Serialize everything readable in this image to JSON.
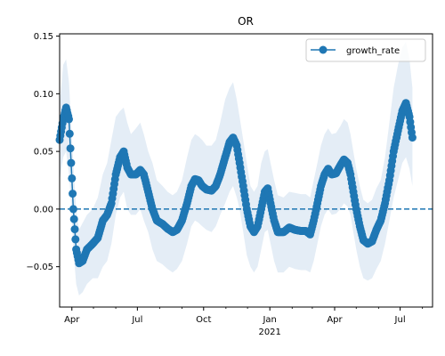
{
  "chart_data": {
    "type": "line",
    "title": "OR",
    "xlabel": "",
    "ylabel": "",
    "x_range": [
      "2020-03-15",
      "2021-08-15"
    ],
    "ylim": [
      -0.085,
      0.152
    ],
    "grid": false,
    "legend_position": "upper right",
    "x_ticks": [
      {
        "date": "2020-04-01",
        "label": "Apr"
      },
      {
        "date": "2020-07-01",
        "label": "Jul"
      },
      {
        "date": "2020-10-01",
        "label": "Oct"
      },
      {
        "date": "2021-01-01",
        "label": "Jan"
      },
      {
        "date": "2021-04-01",
        "label": "Apr"
      },
      {
        "date": "2021-07-01",
        "label": "Jul"
      }
    ],
    "x_secondary_label": {
      "date": "2021-01-01",
      "label": "2021"
    },
    "y_ticks": [
      {
        "value": -0.05,
        "label": "−0.05"
      },
      {
        "value": 0.0,
        "label": "0.00"
      },
      {
        "value": 0.05,
        "label": "0.05"
      },
      {
        "value": 0.1,
        "label": "0.10"
      },
      {
        "value": 0.15,
        "label": "0.15"
      }
    ],
    "reference_line": {
      "value": 0.0,
      "style": "dashed",
      "color": "#1f77b4"
    },
    "series": [
      {
        "name": "growth_rate",
        "color": "#1f77b4",
        "marker": "circle",
        "band_color": "#dbe7f3",
        "points": [
          {
            "x": "2020-03-15",
            "y": 0.06,
            "lo": 0.025,
            "hi": 0.09
          },
          {
            "x": "2020-03-20",
            "y": 0.078,
            "lo": 0.045,
            "hi": 0.125
          },
          {
            "x": "2020-03-24",
            "y": 0.088,
            "lo": 0.05,
            "hi": 0.13
          },
          {
            "x": "2020-03-28",
            "y": 0.078,
            "lo": 0.03,
            "hi": 0.11
          },
          {
            "x": "2020-03-31",
            "y": 0.04,
            "lo": 0.005,
            "hi": 0.075
          },
          {
            "x": "2020-04-03",
            "y": 0.0,
            "lo": -0.035,
            "hi": 0.04
          },
          {
            "x": "2020-04-07",
            "y": -0.035,
            "lo": -0.065,
            "hi": 0.0
          },
          {
            "x": "2020-04-11",
            "y": -0.047,
            "lo": -0.075,
            "hi": -0.018
          },
          {
            "x": "2020-04-16",
            "y": -0.045,
            "lo": -0.072,
            "hi": -0.012
          },
          {
            "x": "2020-04-22",
            "y": -0.035,
            "lo": -0.065,
            "hi": -0.005
          },
          {
            "x": "2020-04-30",
            "y": -0.03,
            "lo": -0.06,
            "hi": 0.0
          },
          {
            "x": "2020-05-07",
            "y": -0.025,
            "lo": -0.06,
            "hi": 0.01
          },
          {
            "x": "2020-05-14",
            "y": -0.01,
            "lo": -0.05,
            "hi": 0.03
          },
          {
            "x": "2020-05-20",
            "y": -0.005,
            "lo": -0.045,
            "hi": 0.04
          },
          {
            "x": "2020-05-26",
            "y": 0.005,
            "lo": -0.03,
            "hi": 0.06
          },
          {
            "x": "2020-06-01",
            "y": 0.03,
            "lo": -0.005,
            "hi": 0.08
          },
          {
            "x": "2020-06-07",
            "y": 0.045,
            "lo": 0.01,
            "hi": 0.085
          },
          {
            "x": "2020-06-12",
            "y": 0.05,
            "lo": 0.015,
            "hi": 0.088
          },
          {
            "x": "2020-06-17",
            "y": 0.036,
            "lo": 0.0,
            "hi": 0.075
          },
          {
            "x": "2020-06-22",
            "y": 0.03,
            "lo": -0.005,
            "hi": 0.065
          },
          {
            "x": "2020-06-29",
            "y": 0.03,
            "lo": -0.005,
            "hi": 0.07
          },
          {
            "x": "2020-07-05",
            "y": 0.034,
            "lo": 0.0,
            "hi": 0.075
          },
          {
            "x": "2020-07-10",
            "y": 0.03,
            "lo": -0.01,
            "hi": 0.065
          },
          {
            "x": "2020-07-16",
            "y": 0.015,
            "lo": -0.02,
            "hi": 0.05
          },
          {
            "x": "2020-07-22",
            "y": 0.0,
            "lo": -0.035,
            "hi": 0.04
          },
          {
            "x": "2020-07-28",
            "y": -0.01,
            "lo": -0.045,
            "hi": 0.025
          },
          {
            "x": "2020-08-05",
            "y": -0.013,
            "lo": -0.048,
            "hi": 0.02
          },
          {
            "x": "2020-08-12",
            "y": -0.017,
            "lo": -0.052,
            "hi": 0.015
          },
          {
            "x": "2020-08-19",
            "y": -0.02,
            "lo": -0.055,
            "hi": 0.012
          },
          {
            "x": "2020-08-25",
            "y": -0.018,
            "lo": -0.052,
            "hi": 0.015
          },
          {
            "x": "2020-09-01",
            "y": -0.01,
            "lo": -0.045,
            "hi": 0.025
          },
          {
            "x": "2020-09-08",
            "y": 0.005,
            "lo": -0.03,
            "hi": 0.045
          },
          {
            "x": "2020-09-14",
            "y": 0.02,
            "lo": -0.015,
            "hi": 0.06
          },
          {
            "x": "2020-09-19",
            "y": 0.026,
            "lo": -0.01,
            "hi": 0.065
          },
          {
            "x": "2020-09-24",
            "y": 0.025,
            "lo": -0.012,
            "hi": 0.063
          },
          {
            "x": "2020-09-29",
            "y": 0.02,
            "lo": -0.015,
            "hi": 0.06
          },
          {
            "x": "2020-10-05",
            "y": 0.017,
            "lo": -0.018,
            "hi": 0.055
          },
          {
            "x": "2020-10-12",
            "y": 0.016,
            "lo": -0.02,
            "hi": 0.055
          },
          {
            "x": "2020-10-18",
            "y": 0.02,
            "lo": -0.015,
            "hi": 0.06
          },
          {
            "x": "2020-10-24",
            "y": 0.03,
            "lo": -0.005,
            "hi": 0.075
          },
          {
            "x": "2020-10-31",
            "y": 0.045,
            "lo": 0.005,
            "hi": 0.095
          },
          {
            "x": "2020-11-06",
            "y": 0.058,
            "lo": 0.015,
            "hi": 0.105
          },
          {
            "x": "2020-11-11",
            "y": 0.062,
            "lo": 0.02,
            "hi": 0.11
          },
          {
            "x": "2020-11-16",
            "y": 0.055,
            "lo": 0.01,
            "hi": 0.095
          },
          {
            "x": "2020-11-20",
            "y": 0.04,
            "lo": 0.0,
            "hi": 0.08
          },
          {
            "x": "2020-11-25",
            "y": 0.02,
            "lo": -0.02,
            "hi": 0.06
          },
          {
            "x": "2020-11-30",
            "y": 0.0,
            "lo": -0.04,
            "hi": 0.04
          },
          {
            "x": "2020-12-05",
            "y": -0.015,
            "lo": -0.05,
            "hi": 0.02
          },
          {
            "x": "2020-12-10",
            "y": -0.02,
            "lo": -0.055,
            "hi": 0.015
          },
          {
            "x": "2020-12-15",
            "y": -0.015,
            "lo": -0.05,
            "hi": 0.02
          },
          {
            "x": "2020-12-20",
            "y": 0.0,
            "lo": -0.035,
            "hi": 0.04
          },
          {
            "x": "2020-12-25",
            "y": 0.015,
            "lo": -0.02,
            "hi": 0.05
          },
          {
            "x": "2020-12-29",
            "y": 0.018,
            "lo": -0.018,
            "hi": 0.052
          },
          {
            "x": "2021-01-02",
            "y": 0.005,
            "lo": -0.03,
            "hi": 0.04
          },
          {
            "x": "2021-01-07",
            "y": -0.01,
            "lo": -0.045,
            "hi": 0.025
          },
          {
            "x": "2021-01-12",
            "y": -0.02,
            "lo": -0.055,
            "hi": 0.012
          },
          {
            "x": "2021-01-20",
            "y": -0.02,
            "lo": -0.055,
            "hi": 0.01
          },
          {
            "x": "2021-01-28",
            "y": -0.016,
            "lo": -0.05,
            "hi": 0.015
          },
          {
            "x": "2021-02-05",
            "y": -0.018,
            "lo": -0.052,
            "hi": 0.014
          },
          {
            "x": "2021-02-13",
            "y": -0.019,
            "lo": -0.053,
            "hi": 0.013
          },
          {
            "x": "2021-02-20",
            "y": -0.019,
            "lo": -0.053,
            "hi": 0.013
          },
          {
            "x": "2021-02-26",
            "y": -0.022,
            "lo": -0.055,
            "hi": 0.01
          },
          {
            "x": "2021-03-03",
            "y": -0.01,
            "lo": -0.045,
            "hi": 0.025
          },
          {
            "x": "2021-03-08",
            "y": 0.005,
            "lo": -0.03,
            "hi": 0.04
          },
          {
            "x": "2021-03-13",
            "y": 0.02,
            "lo": -0.015,
            "hi": 0.055
          },
          {
            "x": "2021-03-18",
            "y": 0.03,
            "lo": -0.005,
            "hi": 0.065
          },
          {
            "x": "2021-03-23",
            "y": 0.035,
            "lo": 0.0,
            "hi": 0.07
          },
          {
            "x": "2021-03-28",
            "y": 0.03,
            "lo": -0.005,
            "hi": 0.065
          },
          {
            "x": "2021-04-03",
            "y": 0.031,
            "lo": -0.004,
            "hi": 0.066
          },
          {
            "x": "2021-04-09",
            "y": 0.038,
            "lo": 0.0,
            "hi": 0.072
          },
          {
            "x": "2021-04-14",
            "y": 0.043,
            "lo": 0.005,
            "hi": 0.078
          },
          {
            "x": "2021-04-19",
            "y": 0.04,
            "lo": 0.002,
            "hi": 0.075
          },
          {
            "x": "2021-04-23",
            "y": 0.03,
            "lo": -0.005,
            "hi": 0.065
          },
          {
            "x": "2021-04-27",
            "y": 0.015,
            "lo": -0.02,
            "hi": 0.05
          },
          {
            "x": "2021-05-01",
            "y": 0.0,
            "lo": -0.035,
            "hi": 0.035
          },
          {
            "x": "2021-05-06",
            "y": -0.015,
            "lo": -0.05,
            "hi": 0.02
          },
          {
            "x": "2021-05-11",
            "y": -0.027,
            "lo": -0.06,
            "hi": 0.008
          },
          {
            "x": "2021-05-17",
            "y": -0.03,
            "lo": -0.062,
            "hi": 0.005
          },
          {
            "x": "2021-05-23",
            "y": -0.028,
            "lo": -0.06,
            "hi": 0.008
          },
          {
            "x": "2021-05-29",
            "y": -0.018,
            "lo": -0.052,
            "hi": 0.018
          },
          {
            "x": "2021-06-04",
            "y": -0.01,
            "lo": -0.045,
            "hi": 0.025
          },
          {
            "x": "2021-06-10",
            "y": 0.005,
            "lo": -0.03,
            "hi": 0.045
          },
          {
            "x": "2021-06-16",
            "y": 0.025,
            "lo": -0.01,
            "hi": 0.075
          },
          {
            "x": "2021-06-22",
            "y": 0.05,
            "lo": 0.01,
            "hi": 0.105
          },
          {
            "x": "2021-06-28",
            "y": 0.068,
            "lo": 0.025,
            "hi": 0.125
          },
          {
            "x": "2021-07-04",
            "y": 0.085,
            "lo": 0.04,
            "hi": 0.14
          },
          {
            "x": "2021-07-09",
            "y": 0.092,
            "lo": 0.045,
            "hi": 0.145
          },
          {
            "x": "2021-07-14",
            "y": 0.08,
            "lo": 0.035,
            "hi": 0.13
          },
          {
            "x": "2021-07-18",
            "y": 0.062,
            "lo": 0.02,
            "hi": 0.105
          }
        ]
      }
    ]
  }
}
